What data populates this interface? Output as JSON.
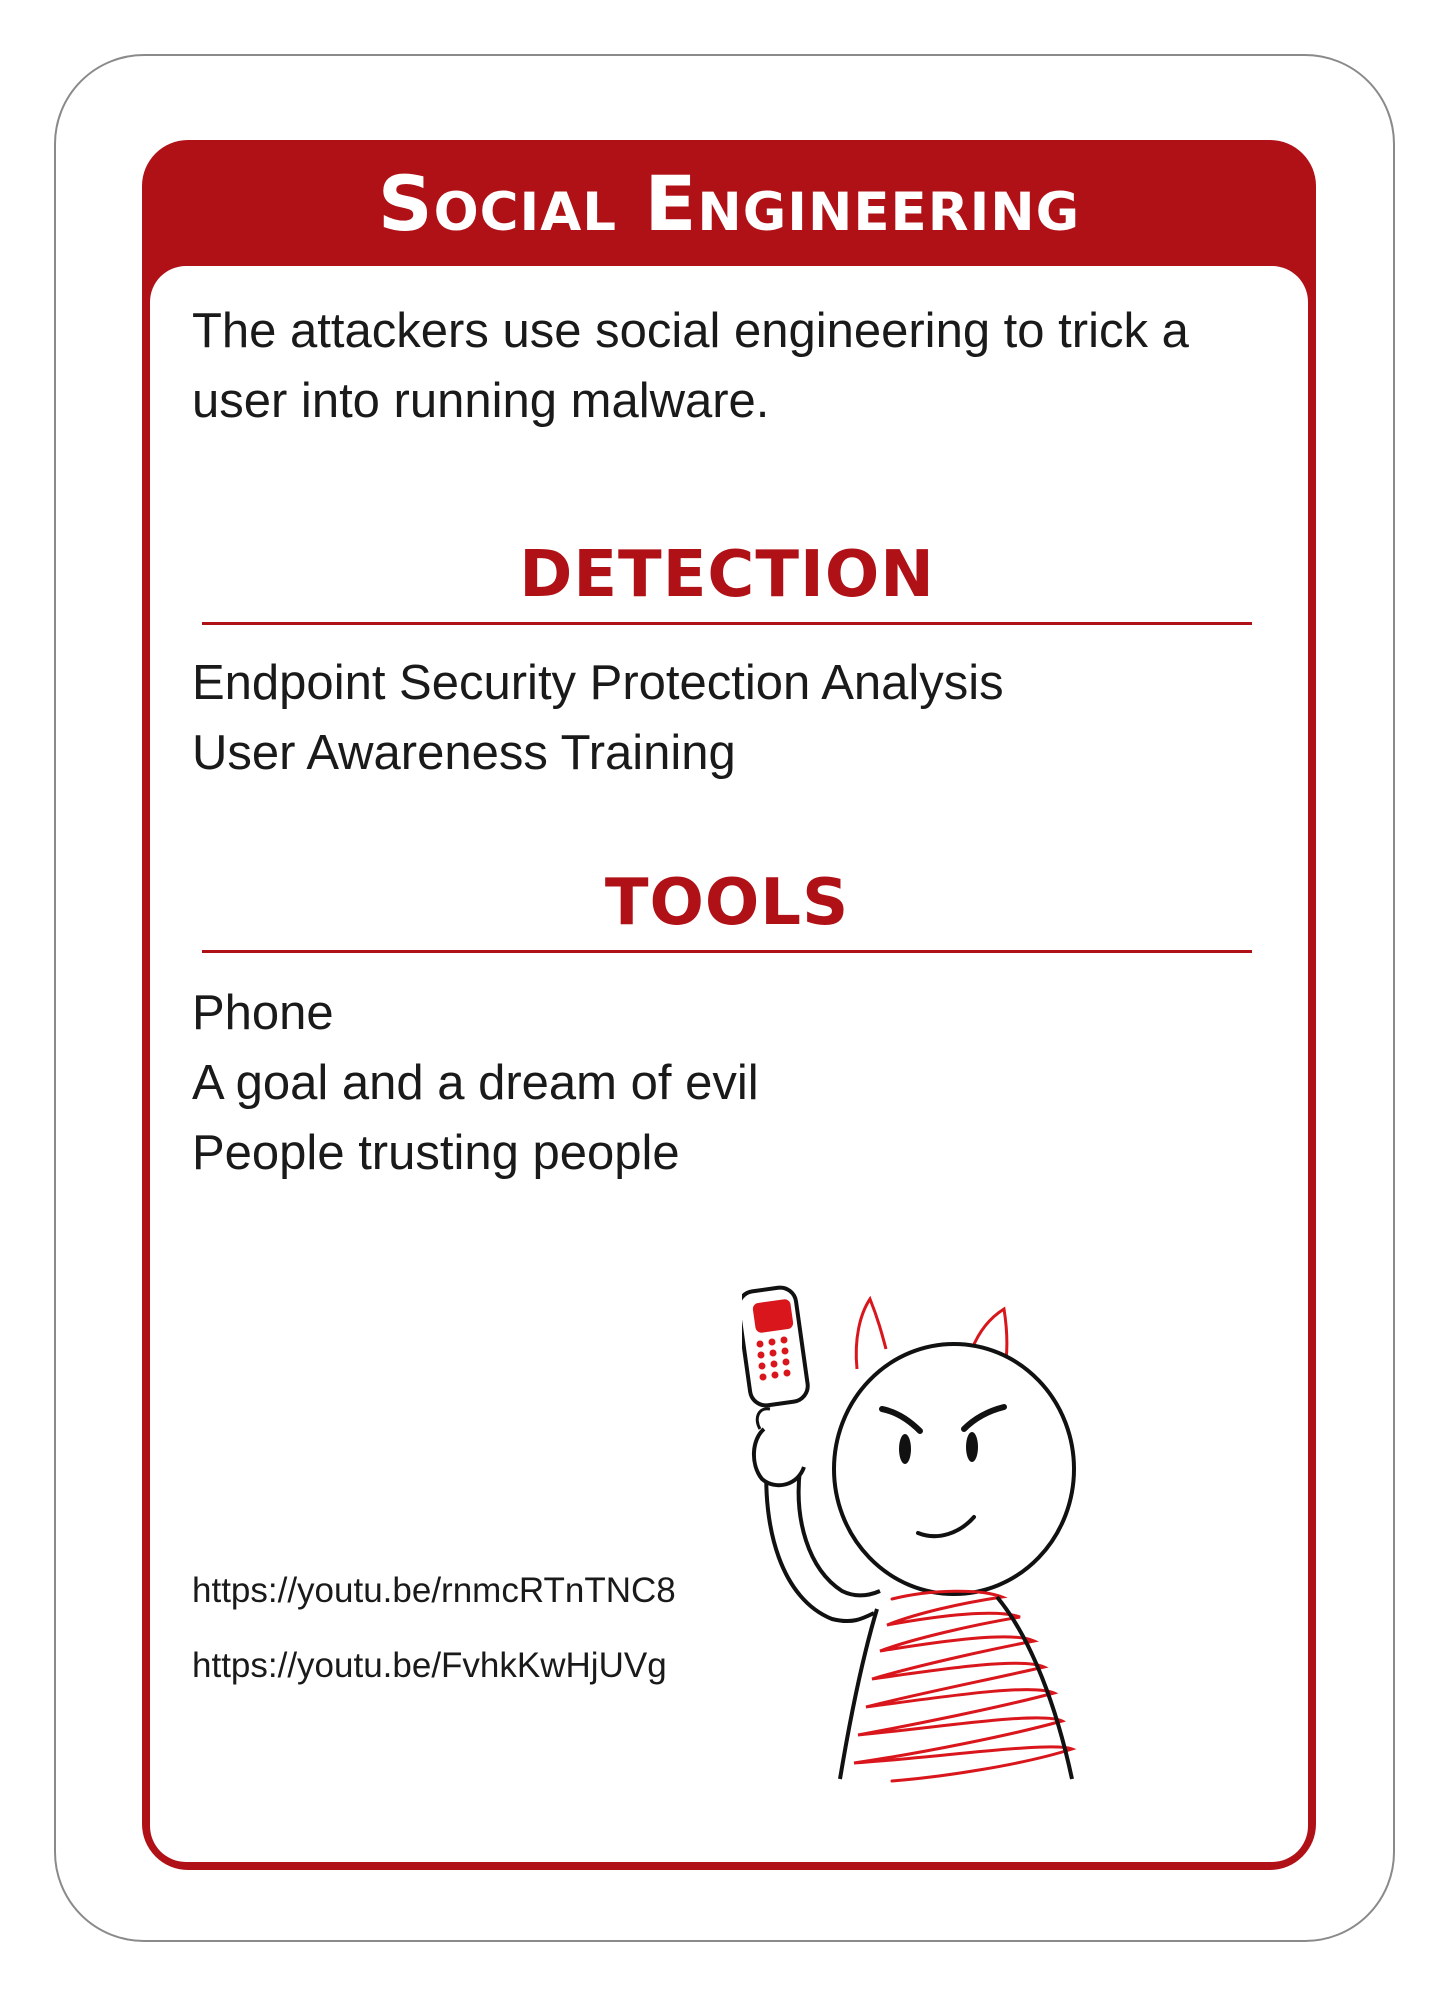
{
  "card": {
    "title": "Social Engineering",
    "description": "The attackers use social engineering to trick a user into running malware.",
    "colors": {
      "accent": "#b01117",
      "text": "#1a1a1a",
      "background": "#ffffff"
    },
    "detection": {
      "heading": "DETECTION",
      "items": [
        "Endpoint Security Protection Analysis",
        "User Awareness Training"
      ]
    },
    "tools": {
      "heading": "TOOLS",
      "items": [
        "Phone",
        "A goal and a dream of evil",
        "People trusting people"
      ]
    },
    "illustration": {
      "icon": "devil-with-phone-icon"
    },
    "links": [
      "https://youtu.be/rnmcRTnTNC8",
      "https://youtu.be/FvhkKwHjUVg"
    ]
  }
}
